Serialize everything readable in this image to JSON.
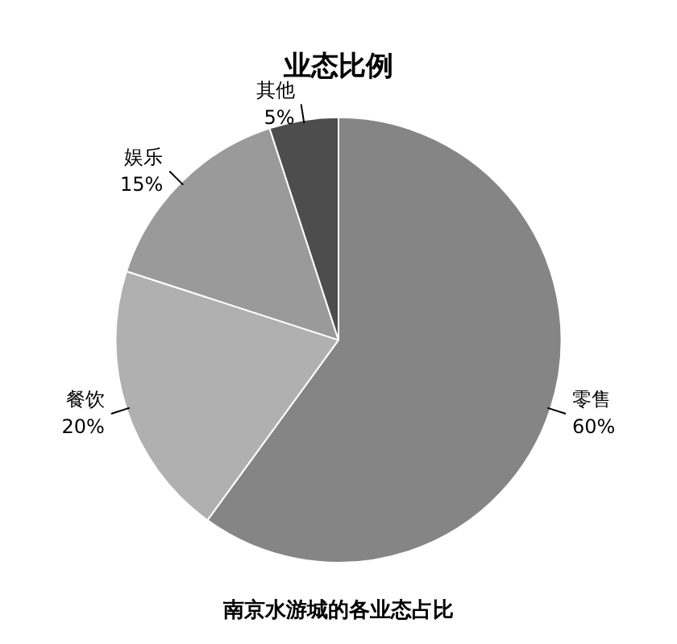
{
  "chart_data": {
    "type": "pie",
    "title": "业态比例",
    "categories": [
      "零售",
      "餐饮",
      "娱乐",
      "其他"
    ],
    "values": [
      60,
      20,
      15,
      5
    ],
    "value_labels": [
      "60%",
      "20%",
      "15%",
      "5%"
    ],
    "colors": [
      "#858585",
      "#b0b0b0",
      "#9a9a9a",
      "#4d4d4d"
    ],
    "legend": false,
    "annotations": [
      "南京水游城的各业态占比"
    ]
  }
}
